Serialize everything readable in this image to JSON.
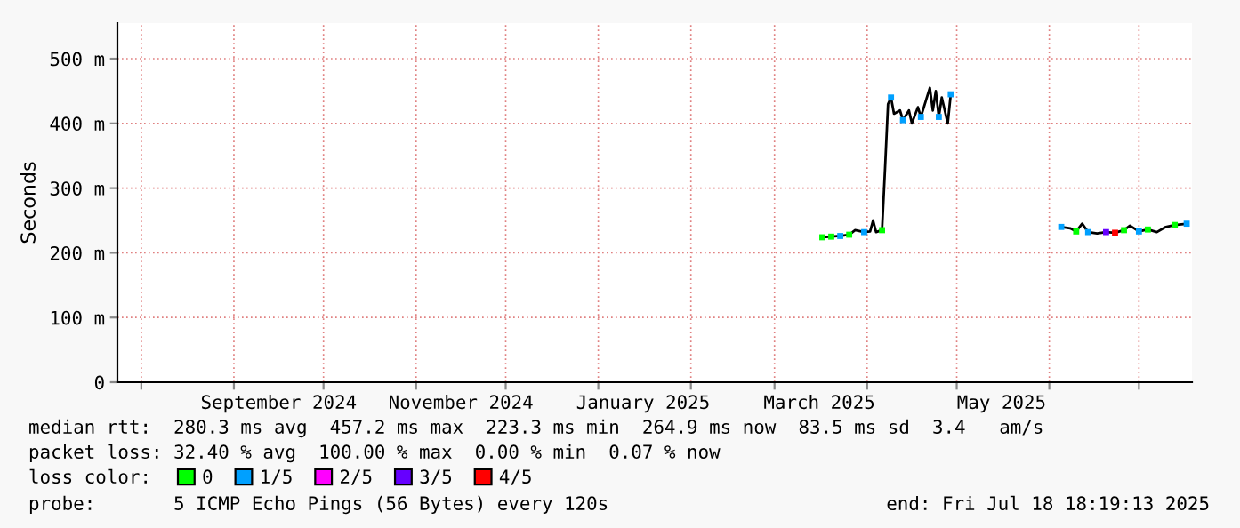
{
  "chart_data": {
    "type": "line",
    "ylabel": "Seconds",
    "xlim": [
      "2024-07-24",
      "2025-07-18T18:19"
    ],
    "xticks": [
      {
        "value": "2024-08-01",
        "label": null
      },
      {
        "value": "2024-09-01",
        "label": null
      },
      {
        "value": "2024-09-16",
        "label": "September 2024"
      },
      {
        "value": "2024-10-01",
        "label": null
      },
      {
        "value": "2024-11-01",
        "label": null
      },
      {
        "value": "2024-11-16",
        "label": "November 2024"
      },
      {
        "value": "2024-12-01",
        "label": null
      },
      {
        "value": "2025-01-01",
        "label": null
      },
      {
        "value": "2025-01-16",
        "label": "January 2025"
      },
      {
        "value": "2025-02-01",
        "label": null
      },
      {
        "value": "2025-03-01",
        "label": null
      },
      {
        "value": "2025-03-16",
        "label": "March 2025"
      },
      {
        "value": "2025-04-01",
        "label": null
      },
      {
        "value": "2025-05-01",
        "label": null
      },
      {
        "value": "2025-05-16",
        "label": "May 2025"
      },
      {
        "value": "2025-06-01",
        "label": null
      },
      {
        "value": "2025-07-01",
        "label": null
      }
    ],
    "ylim": [
      0,
      555
    ],
    "yticks": [
      0,
      {
        "value": 100,
        "label": "100 m"
      },
      {
        "value": 200,
        "label": "200 m"
      },
      {
        "value": 300,
        "label": "300 m"
      },
      {
        "value": 400,
        "label": "400 m"
      },
      {
        "value": 500,
        "label": "500 m"
      }
    ],
    "grid": true,
    "legend": "bottom",
    "legend_title": "loss color:",
    "series": [
      {
        "color": "#000000",
        "x": [
          "2025-03-17",
          "2025-03-20",
          "2025-03-23",
          "2025-03-26",
          "2025-03-28",
          "2025-03-31",
          "2025-04-02",
          "2025-04-03",
          "2025-04-04",
          "2025-04-06",
          "2025-04-07",
          "2025-04-08",
          "2025-04-09",
          "2025-04-10",
          "2025-04-12",
          "2025-04-13",
          "2025-04-15",
          "2025-04-16",
          "2025-04-18",
          "2025-04-19",
          "2025-04-21",
          "2025-04-22",
          "2025-04-23",
          "2025-04-24",
          "2025-04-25",
          "2025-04-26",
          "2025-04-27",
          "2025-04-28",
          "2025-04-29",
          "2025-05-15",
          "2025-06-05",
          "2025-06-08",
          "2025-06-10",
          "2025-06-12",
          "2025-06-14",
          "2025-06-17",
          "2025-06-20",
          "2025-06-23",
          "2025-06-26",
          "2025-06-28",
          "2025-07-01",
          "2025-07-04",
          "2025-07-07",
          "2025-07-10",
          "2025-07-13",
          "2025-07-17"
        ],
        "values": [
          224,
          225,
          226,
          228,
          235,
          232,
          233,
          250,
          232,
          235,
          330,
          430,
          440,
          415,
          420,
          405,
          420,
          400,
          425,
          410,
          440,
          455,
          420,
          450,
          410,
          440,
          420,
          400,
          445,
          null,
          240,
          238,
          233,
          245,
          232,
          230,
          232,
          231,
          235,
          242,
          233,
          236,
          232,
          240,
          243,
          245
        ]
      },
      {
        "type": "scatter",
        "name": "0",
        "color": "#00ff00",
        "x": [
          "2025-03-17",
          "2025-03-20",
          "2025-03-26",
          "2025-04-06",
          "2025-06-10",
          "2025-06-26",
          "2025-07-04",
          "2025-07-13"
        ],
        "values": [
          224,
          225,
          228,
          235,
          233,
          235,
          236,
          243
        ]
      },
      {
        "type": "scatter",
        "name": "1/5",
        "color": "#00a0ff",
        "x": [
          "2025-03-23",
          "2025-03-31",
          "2025-04-09",
          "2025-04-13",
          "2025-04-19",
          "2025-04-25",
          "2025-04-29",
          "2025-06-05",
          "2025-06-14",
          "2025-07-01",
          "2025-07-17"
        ],
        "values": [
          226,
          232,
          440,
          405,
          410,
          410,
          445,
          240,
          232,
          233,
          245
        ]
      },
      {
        "type": "scatter",
        "name": "2/5",
        "color": "#ff00ff"
      },
      {
        "type": "scatter",
        "name": "3/5",
        "color": "#6600ff",
        "x": [
          "2025-06-20"
        ],
        "values": [
          232
        ]
      },
      {
        "type": "scatter",
        "name": "4/5",
        "color": "#ff0000",
        "x": [
          "2025-06-23"
        ],
        "values": [
          231
        ]
      }
    ],
    "annotations": [
      "median rtt:  280.3 ms avg  457.2 ms max  223.3 ms min  264.9 ms now  83.5 ms sd  3.4   am/s",
      "packet loss: 32.40 % avg  100.00 % max  0.00 % min  0.07 % now",
      "probe:       5 ICMP Echo Pings (56 Bytes) every 120s",
      "end: Fri Jul 18 18:19:13 2025"
    ]
  }
}
